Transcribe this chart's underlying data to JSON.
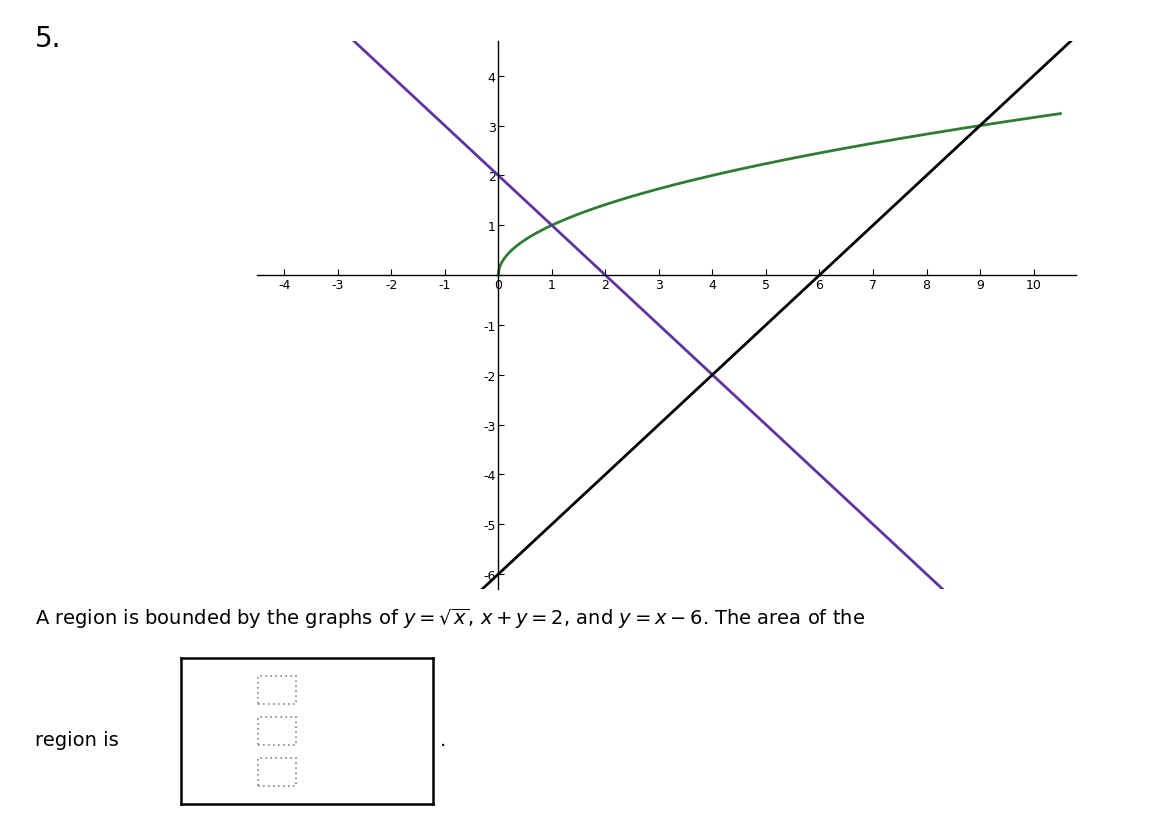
{
  "title_text": "5.",
  "title_fontsize": 20,
  "xlim": [
    -4.5,
    10.8
  ],
  "ylim": [
    -6.3,
    4.7
  ],
  "xticks": [
    -4,
    -3,
    -2,
    -1,
    0,
    1,
    2,
    3,
    4,
    5,
    6,
    7,
    8,
    9,
    10
  ],
  "yticks": [
    -6,
    -5,
    -4,
    -3,
    -2,
    -1,
    1,
    2,
    3,
    4
  ],
  "curve_color": "#2e7d32",
  "line1_color": "#5c35a0",
  "line2_color": "#000000",
  "axis_color": "#000000",
  "background_color": "#ffffff",
  "tick_fontsize": 9,
  "description_text": "A region is bounded by the graphs of $y = \\sqrt{x}$, $x + y = 2$, and $y = x - 6$. The area of the",
  "region_text": "region is",
  "desc_fontsize": 14
}
